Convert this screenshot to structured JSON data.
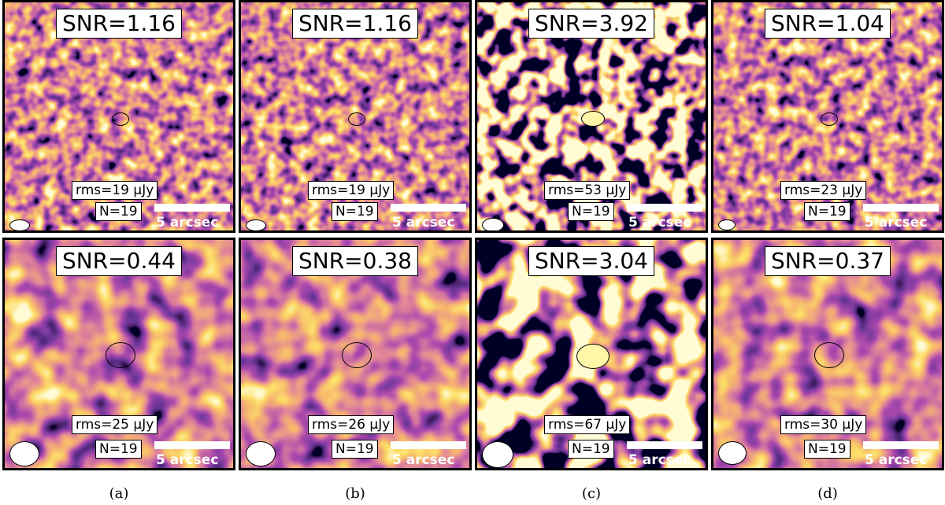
{
  "panels": [
    {
      "snr": "SNR=1.16",
      "rms": "rms=19 μJy",
      "n": "N=19",
      "scale": "5 arcsec",
      "variant": "hi",
      "source": "faint"
    },
    {
      "snr": "SNR=1.16",
      "rms": "rms=19 μJy",
      "n": "N=19",
      "scale": "5 arcsec",
      "variant": "hi",
      "source": "faint"
    },
    {
      "snr": "SNR=3.92",
      "rms": "rms=53 μJy",
      "n": "N=19",
      "scale": "5 arcsec",
      "variant": "hicontrast",
      "source": "bright"
    },
    {
      "snr": "SNR=1.04",
      "rms": "rms=23 μJy",
      "n": "N=19",
      "scale": "5 arcsec",
      "variant": "hi",
      "source": "faint"
    },
    {
      "snr": "SNR=0.44",
      "rms": "rms=25 μJy",
      "n": "N=19",
      "scale": "5 arcsec",
      "variant": "lo",
      "source": "faint"
    },
    {
      "snr": "SNR=0.38",
      "rms": "rms=26 μJy",
      "n": "N=19",
      "scale": "5 arcsec",
      "variant": "lo",
      "source": "faint"
    },
    {
      "snr": "SNR=3.04",
      "rms": "rms=67 μJy",
      "n": "N=19",
      "scale": "5 arcsec",
      "variant": "locontrast",
      "source": "bright"
    },
    {
      "snr": "SNR=0.37",
      "rms": "rms=30 μJy",
      "n": "N=19",
      "scale": "5 arcsec",
      "variant": "lo",
      "source": "faint"
    }
  ],
  "captions": [
    "(a)",
    "(b)",
    "(c)",
    "(d)"
  ],
  "colormap": {
    "name": "inferno",
    "background": "#d96a3a",
    "dark": "#2a0c55",
    "bright": "#fff6a8"
  }
}
